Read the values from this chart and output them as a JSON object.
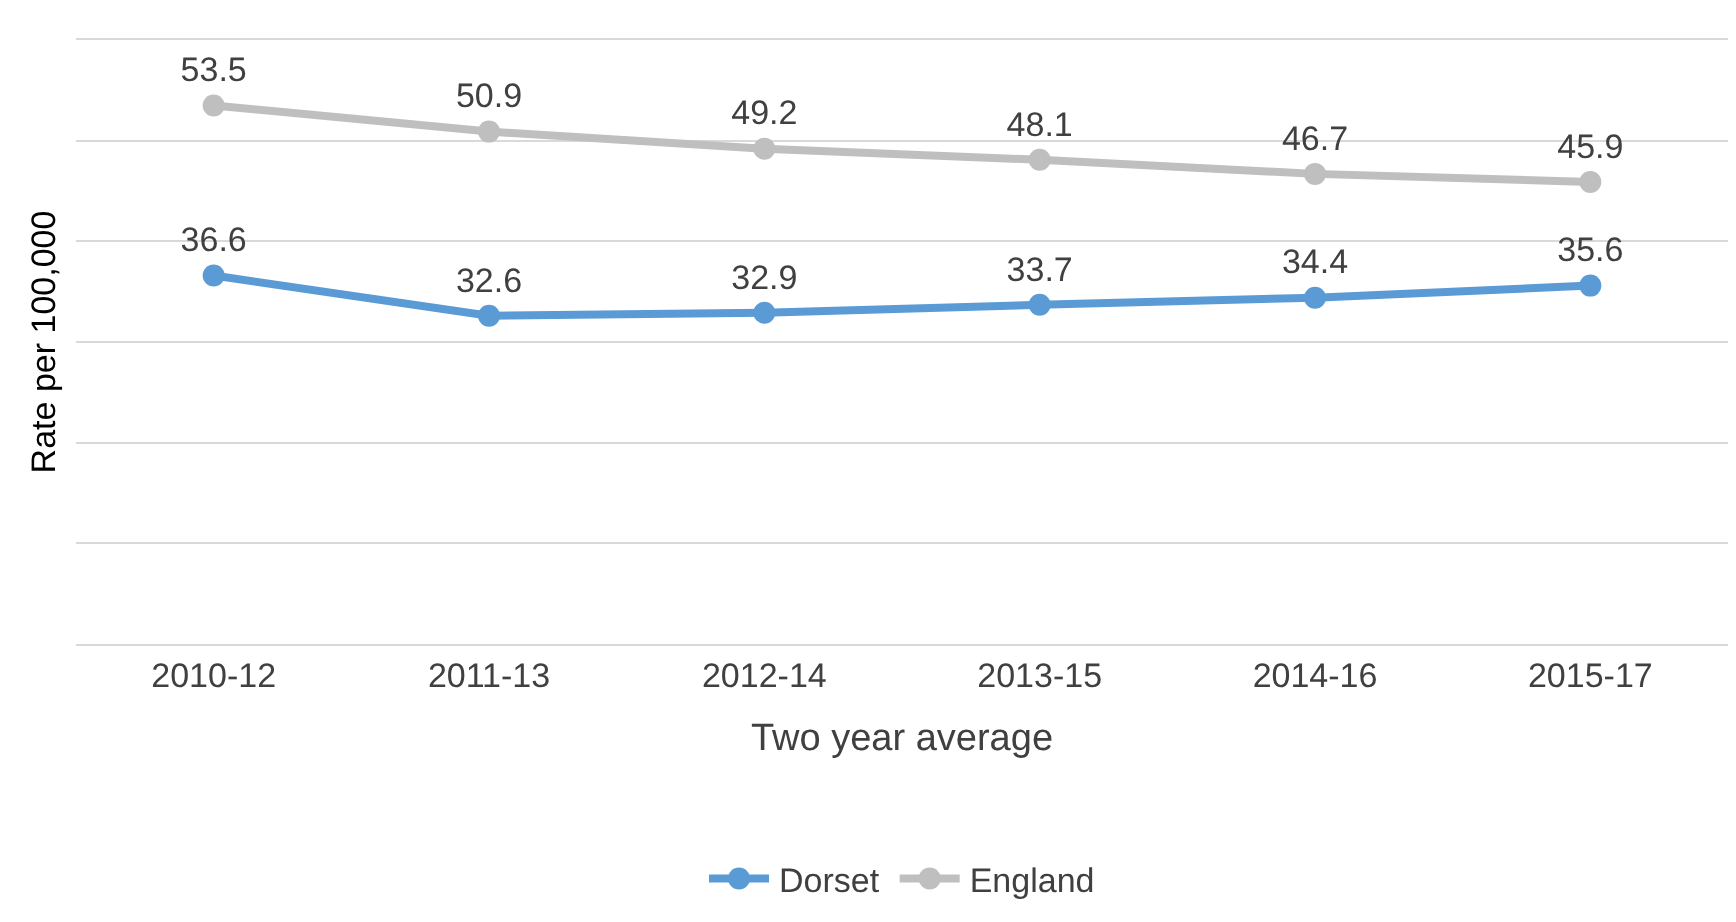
{
  "chart_data": {
    "type": "line",
    "xlabel": "Two year average",
    "ylabel": "Rate per 100,000",
    "categories": [
      "2010-12",
      "2011-13",
      "2012-14",
      "2013-15",
      "2014-16",
      "2015-17"
    ],
    "series": [
      {
        "name": "Dorset",
        "color": "#5b9bd5",
        "values": [
          36.6,
          32.6,
          32.9,
          33.7,
          34.4,
          35.6
        ]
      },
      {
        "name": "England",
        "color": "#bfbfbf",
        "values": [
          53.5,
          50.9,
          49.2,
          48.1,
          46.7,
          45.9
        ]
      }
    ],
    "ylim": [
      0,
      60
    ],
    "yticks": [
      {
        "value": 0,
        "label": null
      },
      {
        "value": 10,
        "label": null
      },
      {
        "value": 20,
        "label": null
      },
      {
        "value": 30,
        "label": null
      },
      {
        "value": 40,
        "label": null
      },
      {
        "value": 50,
        "label": null
      },
      {
        "value": 60,
        "label": null
      }
    ],
    "tick_labels": "x",
    "grid": "y",
    "legend": "bottom",
    "marker": "circle",
    "line_style": "solid",
    "data_labels": true
  }
}
